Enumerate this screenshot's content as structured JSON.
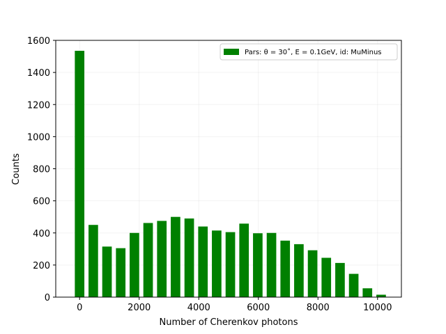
{
  "chart_data": {
    "type": "bar",
    "title": "",
    "xlabel": "Number of Cherenkov photons",
    "ylabel": "Counts",
    "xlim": [
      -800,
      10800
    ],
    "ylim": [
      0,
      1600
    ],
    "xticks": [
      0,
      2000,
      4000,
      6000,
      8000,
      10000
    ],
    "yticks": [
      0,
      200,
      400,
      600,
      800,
      1000,
      1200,
      1400,
      1600
    ],
    "grid": true,
    "legend_position": "top-right",
    "bar_width": 320,
    "color": "#008000",
    "series": [
      {
        "name": "Pars: θ = 30˚, E = 0.1GeV, id: MuMinus",
        "x": [
          0,
          460,
          920,
          1380,
          1840,
          2300,
          2760,
          3220,
          3680,
          4140,
          4600,
          5060,
          5520,
          5980,
          6440,
          6900,
          7360,
          7820,
          8280,
          8740,
          9200,
          9660,
          10120
        ],
        "values": [
          1535,
          450,
          315,
          305,
          400,
          462,
          475,
          500,
          490,
          440,
          415,
          405,
          458,
          398,
          400,
          352,
          330,
          292,
          245,
          213,
          145,
          55,
          15
        ]
      }
    ]
  }
}
